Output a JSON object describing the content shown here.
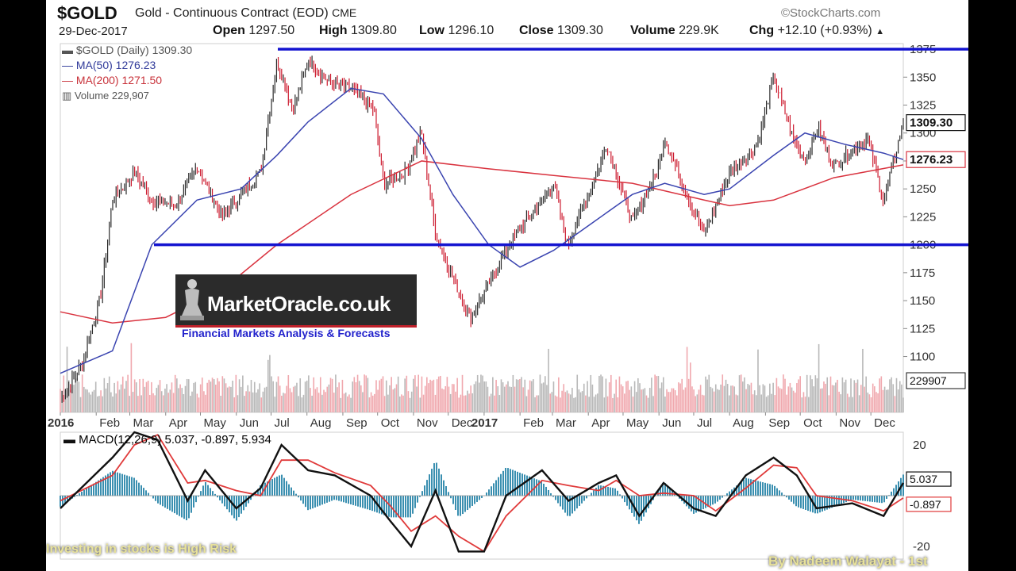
{
  "header": {
    "symbol": "$GOLD",
    "contract": "Gold - Continuous Contract (EOD)",
    "exchange": "CME",
    "copyright": "©StockCharts.com",
    "date": "29-Dec-2017",
    "quote": {
      "open_label": "Open",
      "open": "1297.50",
      "high_label": "High",
      "high": "1309.80",
      "low_label": "Low",
      "low": "1296.10",
      "close_label": "Close",
      "close": "1309.30",
      "volume_label": "Volume",
      "volume": "229.9K",
      "chg_label": "Chg",
      "chg": "+12.10 (+0.93%)"
    }
  },
  "legend": {
    "price": "$GOLD (Daily) 1309.30",
    "ma50": "MA(50) 1276.23",
    "ma200": "MA(200) 1271.50",
    "volume": "Volume 229,907"
  },
  "watermark": {
    "title": "MarketOracle.co.uk",
    "subtitle": "Financial Markets Analysis & Forecasts"
  },
  "footer": {
    "left": "Investing in stocks is High Risk",
    "right": "By Nadeem Walayat - 1st"
  },
  "colors": {
    "up": "#2a2a2a",
    "down": "#cc1a2e",
    "ma50": "#3a44b0",
    "ma200": "#d9333f",
    "channel": "#1414d0",
    "macd": "#111111",
    "signal": "#e03a3a",
    "histogram": "#3a8fb0"
  },
  "chart_data": [
    {
      "type": "candlestick",
      "ylim": [
        1050,
        1380
      ],
      "y_ticks": [
        1100,
        1125,
        1150,
        1175,
        1200,
        1225,
        1250,
        1275,
        1300,
        1325,
        1350,
        1375
      ],
      "x_labels": [
        "2016",
        "Feb",
        "Mar",
        "Apr",
        "May",
        "Jun",
        "Jul",
        "Aug",
        "Sep",
        "Oct",
        "Nov",
        "Dec",
        "2017",
        "Feb",
        "Mar",
        "Apr",
        "May",
        "Jun",
        "Jul",
        "Aug",
        "Sep",
        "Oct",
        "Nov",
        "Dec"
      ],
      "close_path": [
        [
          "2016-01-01",
          1060
        ],
        [
          "2016-01-20",
          1095
        ],
        [
          "2016-02-05",
          1155
        ],
        [
          "2016-02-15",
          1240
        ],
        [
          "2016-03-05",
          1265
        ],
        [
          "2016-03-20",
          1240
        ],
        [
          "2016-04-10",
          1235
        ],
        [
          "2016-04-28",
          1270
        ],
        [
          "2016-05-20",
          1225
        ],
        [
          "2016-06-05",
          1245
        ],
        [
          "2016-06-22",
          1265
        ],
        [
          "2016-07-06",
          1365
        ],
        [
          "2016-07-20",
          1320
        ],
        [
          "2016-08-02",
          1365
        ],
        [
          "2016-08-20",
          1345
        ],
        [
          "2016-09-08",
          1340
        ],
        [
          "2016-09-28",
          1320
        ],
        [
          "2016-10-06",
          1255
        ],
        [
          "2016-10-25",
          1265
        ],
        [
          "2016-11-08",
          1300
        ],
        [
          "2016-11-20",
          1210
        ],
        [
          "2016-12-05",
          1170
        ],
        [
          "2016-12-20",
          1135
        ],
        [
          "2017-01-05",
          1165
        ],
        [
          "2017-01-25",
          1205
        ],
        [
          "2017-02-20",
          1240
        ],
        [
          "2017-03-02",
          1255
        ],
        [
          "2017-03-14",
          1200
        ],
        [
          "2017-04-05",
          1255
        ],
        [
          "2017-04-17",
          1290
        ],
        [
          "2017-05-09",
          1220
        ],
        [
          "2017-05-30",
          1265
        ],
        [
          "2017-06-06",
          1295
        ],
        [
          "2017-06-25",
          1245
        ],
        [
          "2017-07-10",
          1210
        ],
        [
          "2017-08-01",
          1265
        ],
        [
          "2017-08-25",
          1290
        ],
        [
          "2017-09-08",
          1350
        ],
        [
          "2017-09-25",
          1295
        ],
        [
          "2017-10-05",
          1275
        ],
        [
          "2017-10-16",
          1305
        ],
        [
          "2017-10-30",
          1270
        ],
        [
          "2017-11-20",
          1290
        ],
        [
          "2017-11-28",
          1295
        ],
        [
          "2017-12-12",
          1240
        ],
        [
          "2017-12-29",
          1309.3
        ]
      ],
      "series": [
        {
          "name": "MA(50) 1276.23",
          "values": [
            [
              "2016-01-01",
              1085
            ],
            [
              "2016-02-15",
              1105
            ],
            [
              "2016-03-20",
              1200
            ],
            [
              "2016-04-28",
              1240
            ],
            [
              "2016-06-05",
              1250
            ],
            [
              "2016-07-06",
              1280
            ],
            [
              "2016-08-02",
              1310
            ],
            [
              "2016-09-08",
              1340
            ],
            [
              "2016-10-06",
              1335
            ],
            [
              "2016-11-08",
              1295
            ],
            [
              "2016-12-05",
              1245
            ],
            [
              "2017-01-05",
              1200
            ],
            [
              "2017-02-01",
              1180
            ],
            [
              "2017-03-02",
              1195
            ],
            [
              "2017-04-05",
              1220
            ],
            [
              "2017-05-09",
              1245
            ],
            [
              "2017-06-06",
              1255
            ],
            [
              "2017-07-10",
              1245
            ],
            [
              "2017-08-01",
              1250
            ],
            [
              "2017-09-08",
              1280
            ],
            [
              "2017-10-05",
              1300
            ],
            [
              "2017-11-08",
              1290
            ],
            [
              "2017-12-12",
              1282
            ],
            [
              "2017-12-29",
              1276.23
            ]
          ]
        },
        {
          "name": "MA(200) 1271.50",
          "values": [
            [
              "2016-01-01",
              1140
            ],
            [
              "2016-02-15",
              1130
            ],
            [
              "2016-04-01",
              1135
            ],
            [
              "2016-05-20",
              1160
            ],
            [
              "2016-07-06",
              1200
            ],
            [
              "2016-09-08",
              1245
            ],
            [
              "2016-11-08",
              1275
            ],
            [
              "2017-01-05",
              1268
            ],
            [
              "2017-03-02",
              1262
            ],
            [
              "2017-05-09",
              1255
            ],
            [
              "2017-07-10",
              1240
            ],
            [
              "2017-08-01",
              1235
            ],
            [
              "2017-09-08",
              1240
            ],
            [
              "2017-10-30",
              1260
            ],
            [
              "2017-12-29",
              1271.5
            ]
          ]
        }
      ],
      "channel_lines": [
        1375,
        1200
      ],
      "last_price_label": "1309.30",
      "ma50_label": "1276.23",
      "volume_label": "229907"
    },
    {
      "type": "line",
      "title": "MACD(12,26,9) 5.037, -0.897, 5.934",
      "ylim": [
        -25,
        25
      ],
      "y_ticks": [
        20,
        -20
      ],
      "series": [
        {
          "name": "MACD",
          "values": [
            [
              "2016-01-01",
              -5
            ],
            [
              "2016-02-15",
              15
            ],
            [
              "2016-03-05",
              25
            ],
            [
              "2016-03-25",
              22
            ],
            [
              "2016-04-20",
              -2
            ],
            [
              "2016-05-05",
              10
            ],
            [
              "2016-06-01",
              -5
            ],
            [
              "2016-06-22",
              3
            ],
            [
              "2016-07-10",
              20
            ],
            [
              "2016-08-02",
              10
            ],
            [
              "2016-08-25",
              8
            ],
            [
              "2016-09-25",
              0
            ],
            [
              "2016-10-12",
              -10
            ],
            [
              "2016-10-30",
              -20
            ],
            [
              "2016-11-20",
              2
            ],
            [
              "2016-12-10",
              -22
            ],
            [
              "2017-01-01",
              -22
            ],
            [
              "2017-01-20",
              0
            ],
            [
              "2017-02-20",
              10
            ],
            [
              "2017-03-15",
              -2
            ],
            [
              "2017-04-10",
              5
            ],
            [
              "2017-04-25",
              8
            ],
            [
              "2017-05-15",
              -8
            ],
            [
              "2017-06-05",
              5
            ],
            [
              "2017-07-01",
              -5
            ],
            [
              "2017-07-20",
              -8
            ],
            [
              "2017-08-15",
              8
            ],
            [
              "2017-09-08",
              15
            ],
            [
              "2017-09-28",
              8
            ],
            [
              "2017-10-15",
              -5
            ],
            [
              "2017-11-15",
              -3
            ],
            [
              "2017-12-12",
              -8
            ],
            [
              "2017-12-29",
              5.037
            ]
          ]
        },
        {
          "name": "Signal",
          "values": [
            [
              "2016-01-01",
              -2
            ],
            [
              "2016-02-15",
              8
            ],
            [
              "2016-03-05",
              20
            ],
            [
              "2016-03-25",
              24
            ],
            [
              "2016-04-20",
              5
            ],
            [
              "2016-05-05",
              6
            ],
            [
              "2016-06-01",
              2
            ],
            [
              "2016-06-22",
              0
            ],
            [
              "2016-07-10",
              14
            ],
            [
              "2016-08-02",
              14
            ],
            [
              "2016-08-25",
              9
            ],
            [
              "2016-09-25",
              4
            ],
            [
              "2016-10-12",
              -4
            ],
            [
              "2016-10-30",
              -14
            ],
            [
              "2016-11-20",
              -8
            ],
            [
              "2016-12-10",
              -16
            ],
            [
              "2017-01-01",
              -22
            ],
            [
              "2017-01-20",
              -8
            ],
            [
              "2017-02-20",
              6
            ],
            [
              "2017-03-15",
              4
            ],
            [
              "2017-04-10",
              2
            ],
            [
              "2017-04-25",
              6
            ],
            [
              "2017-05-15",
              0
            ],
            [
              "2017-06-05",
              1
            ],
            [
              "2017-07-01",
              0
            ],
            [
              "2017-07-20",
              -6
            ],
            [
              "2017-08-15",
              3
            ],
            [
              "2017-09-08",
              12
            ],
            [
              "2017-09-28",
              11
            ],
            [
              "2017-10-15",
              0
            ],
            [
              "2017-11-15",
              -2
            ],
            [
              "2017-12-12",
              -6
            ],
            [
              "2017-12-29",
              -0.897
            ]
          ]
        }
      ],
      "macd_label": "5.037",
      "signal_label": "-0.897"
    }
  ]
}
